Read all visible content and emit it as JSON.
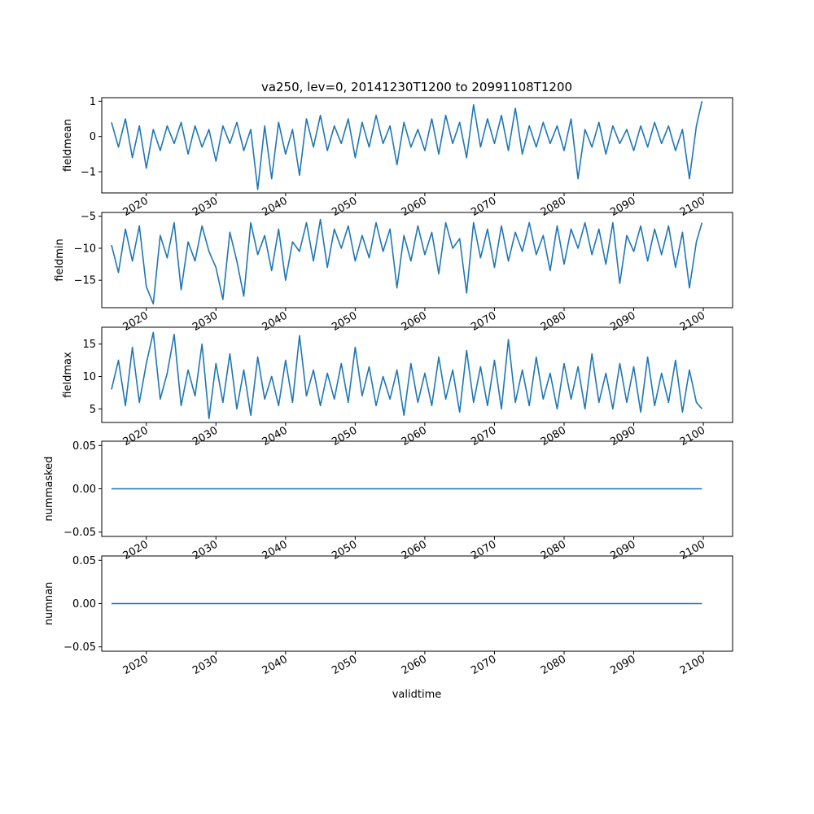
{
  "figure": {
    "title": "va250, lev=0, 20141230T1200 to 20991108T1200",
    "xlabel": "validtime"
  },
  "chart_data": [
    {
      "type": "line",
      "ylabel": "fieldmean",
      "xlim": [
        2013.6,
        2104.2
      ],
      "ylim": [
        -1.6,
        1.1
      ],
      "yticks": [
        1,
        0,
        -1
      ],
      "ytick_labels": [
        "1",
        "0",
        "−1"
      ],
      "xticks": [
        2020,
        2030,
        2040,
        2050,
        2060,
        2070,
        2080,
        2090,
        2100
      ],
      "xtick_labels": [
        "2020",
        "2030",
        "2040",
        "2050",
        "2060",
        "2070",
        "2080",
        "2090",
        "2100"
      ],
      "color": "#1f77b4",
      "series": [
        {
          "x": [
            2015.0,
            2016.0,
            2017.0,
            2018.0,
            2019.0,
            2020.0,
            2021.0,
            2022.0,
            2023.0,
            2024.0,
            2025.0,
            2026.0,
            2027.0,
            2028.0,
            2029.0,
            2030.0,
            2031.0,
            2032.0,
            2033.0,
            2034.0,
            2035.0,
            2036.0,
            2037.0,
            2038.0,
            2039.0,
            2040.0,
            2041.0,
            2042.0,
            2043.0,
            2044.0,
            2045.0,
            2046.0,
            2047.0,
            2048.0,
            2049.0,
            2050.0,
            2051.0,
            2052.0,
            2053.0,
            2054.0,
            2055.0,
            2056.0,
            2057.0,
            2058.0,
            2059.0,
            2060.0,
            2061.0,
            2062.0,
            2063.0,
            2064.0,
            2065.0,
            2066.0,
            2067.0,
            2068.0,
            2069.0,
            2070.0,
            2071.0,
            2072.0,
            2073.0,
            2074.0,
            2075.0,
            2076.0,
            2077.0,
            2078.0,
            2079.0,
            2080.0,
            2081.0,
            2082.0,
            2083.0,
            2084.0,
            2085.0,
            2086.0,
            2087.0,
            2088.0,
            2089.0,
            2090.0,
            2091.0,
            2092.0,
            2093.0,
            2094.0,
            2095.0,
            2096.0,
            2097.0,
            2098.0,
            2099.0,
            2099.8
          ],
          "y": [
            0.4,
            -0.3,
            0.5,
            -0.6,
            0.3,
            -0.9,
            0.2,
            -0.4,
            0.3,
            -0.2,
            0.4,
            -0.5,
            0.3,
            -0.3,
            0.2,
            -0.7,
            0.3,
            -0.2,
            0.4,
            -0.4,
            0.2,
            -1.5,
            0.3,
            -1.2,
            0.4,
            -0.5,
            0.2,
            -1.1,
            0.5,
            -0.3,
            0.6,
            -0.4,
            0.3,
            -0.2,
            0.5,
            -0.6,
            0.4,
            -0.3,
            0.6,
            -0.2,
            0.3,
            -0.8,
            0.4,
            -0.3,
            0.2,
            -0.4,
            0.5,
            -0.5,
            0.6,
            -0.2,
            0.4,
            -0.6,
            0.9,
            -0.3,
            0.5,
            -0.2,
            0.6,
            -0.4,
            0.8,
            -0.5,
            0.3,
            -0.3,
            0.4,
            -0.2,
            0.3,
            -0.4,
            0.5,
            -1.2,
            0.2,
            -0.3,
            0.4,
            -0.5,
            0.3,
            -0.2,
            0.2,
            -0.4,
            0.3,
            -0.3,
            0.4,
            -0.2,
            0.3,
            -0.4,
            0.2,
            -1.2,
            0.3,
            1.0
          ]
        }
      ]
    },
    {
      "type": "line",
      "ylabel": "fieldmin",
      "xlim": [
        2013.6,
        2104.2
      ],
      "ylim": [
        -19.3,
        -4.4
      ],
      "yticks": [
        -5,
        -10,
        -15
      ],
      "ytick_labels": [
        "−5",
        "−10",
        "−15"
      ],
      "xticks": [
        2020,
        2030,
        2040,
        2050,
        2060,
        2070,
        2080,
        2090,
        2100
      ],
      "xtick_labels": [
        "2020",
        "2030",
        "2040",
        "2050",
        "2060",
        "2070",
        "2080",
        "2090",
        "2100"
      ],
      "color": "#1f77b4",
      "series": [
        {
          "x": [
            2015.0,
            2016.0,
            2017.0,
            2018.0,
            2019.0,
            2020.0,
            2021.0,
            2022.0,
            2023.0,
            2024.0,
            2025.0,
            2026.0,
            2027.0,
            2028.0,
            2029.0,
            2030.0,
            2031.0,
            2032.0,
            2033.0,
            2034.0,
            2035.0,
            2036.0,
            2037.0,
            2038.0,
            2039.0,
            2040.0,
            2041.0,
            2042.0,
            2043.0,
            2044.0,
            2045.0,
            2046.0,
            2047.0,
            2048.0,
            2049.0,
            2050.0,
            2051.0,
            2052.0,
            2053.0,
            2054.0,
            2055.0,
            2056.0,
            2057.0,
            2058.0,
            2059.0,
            2060.0,
            2061.0,
            2062.0,
            2063.0,
            2064.0,
            2065.0,
            2066.0,
            2067.0,
            2068.0,
            2069.0,
            2070.0,
            2071.0,
            2072.0,
            2073.0,
            2074.0,
            2075.0,
            2076.0,
            2077.0,
            2078.0,
            2079.0,
            2080.0,
            2081.0,
            2082.0,
            2083.0,
            2084.0,
            2085.0,
            2086.0,
            2087.0,
            2088.0,
            2089.0,
            2090.0,
            2091.0,
            2092.0,
            2093.0,
            2094.0,
            2095.0,
            2096.0,
            2097.0,
            2098.0,
            2099.0,
            2099.8
          ],
          "y": [
            -9.5,
            -13.8,
            -7.0,
            -12.0,
            -6.5,
            -16.0,
            -18.7,
            -8.0,
            -11.5,
            -6.0,
            -16.5,
            -9.0,
            -12.0,
            -6.5,
            -10.5,
            -13.0,
            -18.0,
            -7.5,
            -12.0,
            -17.5,
            -6.0,
            -11.0,
            -8.0,
            -13.5,
            -7.0,
            -15.0,
            -9.0,
            -10.5,
            -6.0,
            -12.0,
            -5.5,
            -13.0,
            -7.0,
            -10.0,
            -6.5,
            -12.0,
            -8.0,
            -11.5,
            -6.0,
            -10.5,
            -7.0,
            -16.2,
            -8.0,
            -12.0,
            -6.5,
            -11.0,
            -7.5,
            -14.0,
            -6.0,
            -10.0,
            -8.5,
            -17.0,
            -6.0,
            -11.5,
            -7.0,
            -13.0,
            -6.5,
            -12.0,
            -7.5,
            -10.5,
            -6.0,
            -11.0,
            -8.0,
            -13.5,
            -6.5,
            -12.5,
            -7.0,
            -10.0,
            -6.0,
            -11.0,
            -7.0,
            -12.5,
            -6.0,
            -15.5,
            -8.0,
            -10.5,
            -6.5,
            -12.0,
            -7.0,
            -11.0,
            -6.5,
            -13.0,
            -7.5,
            -16.2,
            -9.0,
            -6.0
          ]
        }
      ]
    },
    {
      "type": "line",
      "ylabel": "fieldmax",
      "xlim": [
        2013.6,
        2104.2
      ],
      "ylim": [
        2.9,
        17.6
      ],
      "yticks": [
        15,
        10,
        5
      ],
      "ytick_labels": [
        "15",
        "10",
        "5"
      ],
      "xticks": [
        2020,
        2030,
        2040,
        2050,
        2060,
        2070,
        2080,
        2090,
        2100
      ],
      "xtick_labels": [
        "2020",
        "2030",
        "2040",
        "2050",
        "2060",
        "2070",
        "2080",
        "2090",
        "2100"
      ],
      "color": "#1f77b4",
      "series": [
        {
          "x": [
            2015.0,
            2016.0,
            2017.0,
            2018.0,
            2019.0,
            2020.0,
            2021.0,
            2022.0,
            2023.0,
            2024.0,
            2025.0,
            2026.0,
            2027.0,
            2028.0,
            2029.0,
            2030.0,
            2031.0,
            2032.0,
            2033.0,
            2034.0,
            2035.0,
            2036.0,
            2037.0,
            2038.0,
            2039.0,
            2040.0,
            2041.0,
            2042.0,
            2043.0,
            2044.0,
            2045.0,
            2046.0,
            2047.0,
            2048.0,
            2049.0,
            2050.0,
            2051.0,
            2052.0,
            2053.0,
            2054.0,
            2055.0,
            2056.0,
            2057.0,
            2058.0,
            2059.0,
            2060.0,
            2061.0,
            2062.0,
            2063.0,
            2064.0,
            2065.0,
            2066.0,
            2067.0,
            2068.0,
            2069.0,
            2070.0,
            2071.0,
            2072.0,
            2073.0,
            2074.0,
            2075.0,
            2076.0,
            2077.0,
            2078.0,
            2079.0,
            2080.0,
            2081.0,
            2082.0,
            2083.0,
            2084.0,
            2085.0,
            2086.0,
            2087.0,
            2088.0,
            2089.0,
            2090.0,
            2091.0,
            2092.0,
            2093.0,
            2094.0,
            2095.0,
            2096.0,
            2097.0,
            2098.0,
            2099.0,
            2099.8
          ],
          "y": [
            8.0,
            12.5,
            5.5,
            14.5,
            6.0,
            12.0,
            16.8,
            6.5,
            10.5,
            16.5,
            5.5,
            11.0,
            7.0,
            15.0,
            3.5,
            12.0,
            6.0,
            13.5,
            5.0,
            11.0,
            4.0,
            13.0,
            6.5,
            10.0,
            5.5,
            12.5,
            6.0,
            16.3,
            7.0,
            11.0,
            5.5,
            10.5,
            6.5,
            12.0,
            6.0,
            14.5,
            7.0,
            11.5,
            5.5,
            10.0,
            6.5,
            11.0,
            4.0,
            12.0,
            6.0,
            10.5,
            5.5,
            13.0,
            6.5,
            11.0,
            4.5,
            14.0,
            6.0,
            11.5,
            5.5,
            12.5,
            5.0,
            15.7,
            6.0,
            11.0,
            5.5,
            13.0,
            6.5,
            10.5,
            5.0,
            12.0,
            6.5,
            11.5,
            5.0,
            13.5,
            6.0,
            10.5,
            5.0,
            12.0,
            6.0,
            11.5,
            4.5,
            13.0,
            5.5,
            10.5,
            6.0,
            12.5,
            4.5,
            11.0,
            6.0,
            5.0
          ]
        }
      ]
    },
    {
      "type": "line",
      "ylabel": "nummasked",
      "xlim": [
        2013.6,
        2104.2
      ],
      "ylim": [
        -0.055,
        0.055
      ],
      "yticks": [
        0.05,
        0.0,
        -0.05
      ],
      "ytick_labels": [
        "0.05",
        "0.00",
        "−0.05"
      ],
      "xticks": [
        2020,
        2030,
        2040,
        2050,
        2060,
        2070,
        2080,
        2090,
        2100
      ],
      "xtick_labels": [
        "2020",
        "2030",
        "2040",
        "2050",
        "2060",
        "2070",
        "2080",
        "2090",
        "2100"
      ],
      "color": "#1f77b4",
      "series": [
        {
          "x": [
            2015.0,
            2099.8
          ],
          "y": [
            0,
            0
          ]
        }
      ]
    },
    {
      "type": "line",
      "ylabel": "numnan",
      "xlim": [
        2013.6,
        2104.2
      ],
      "ylim": [
        -0.055,
        0.055
      ],
      "yticks": [
        0.05,
        0.0,
        -0.05
      ],
      "ytick_labels": [
        "0.05",
        "0.00",
        "−0.05"
      ],
      "xticks": [
        2020,
        2030,
        2040,
        2050,
        2060,
        2070,
        2080,
        2090,
        2100
      ],
      "xtick_labels": [
        "2020",
        "2030",
        "2040",
        "2050",
        "2060",
        "2070",
        "2080",
        "2090",
        "2100"
      ],
      "color": "#1f77b4",
      "series": [
        {
          "x": [
            2015.0,
            2099.8
          ],
          "y": [
            0,
            0
          ]
        }
      ]
    }
  ]
}
